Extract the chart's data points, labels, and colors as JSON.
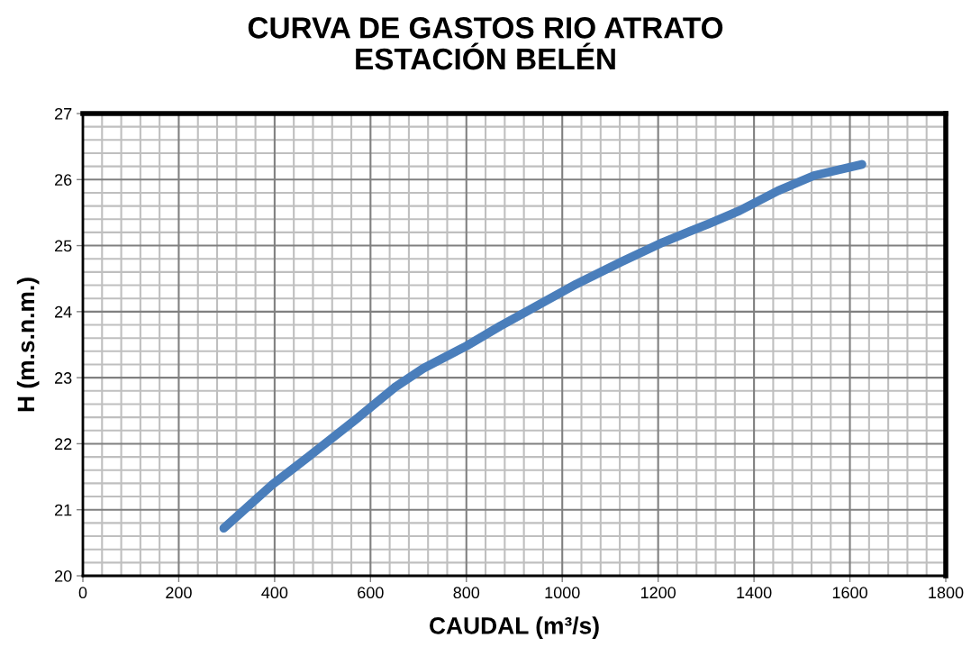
{
  "chart_data": {
    "type": "line",
    "title": "CURVA DE GASTOS RIO ATRATO\nESTACIÓN BELÉN",
    "xlabel": "CAUDAL (m³/s)",
    "ylabel": "H (m.s.n.m.)",
    "series": [
      {
        "color": "#4a7ebb",
        "x": [
          294,
          395,
          470,
          575,
          650,
          710,
          800,
          870,
          945,
          1030,
          1125,
          1210,
          1305,
          1370,
          1450,
          1525,
          1625
        ],
        "values": [
          20.72,
          21.38,
          21.8,
          22.4,
          22.85,
          23.14,
          23.48,
          23.78,
          24.08,
          24.42,
          24.76,
          25.05,
          25.33,
          25.53,
          25.83,
          26.06,
          26.23
        ]
      }
    ],
    "xlim": [
      0,
      1800
    ],
    "xticks": [
      0,
      200,
      400,
      600,
      800,
      1000,
      1200,
      1400,
      1600,
      1800
    ],
    "ylim": [
      20,
      27
    ],
    "yticks": [
      20,
      21,
      22,
      23,
      24,
      25,
      26,
      27
    ],
    "grid": true,
    "marker": "none",
    "line_style": "solid"
  }
}
